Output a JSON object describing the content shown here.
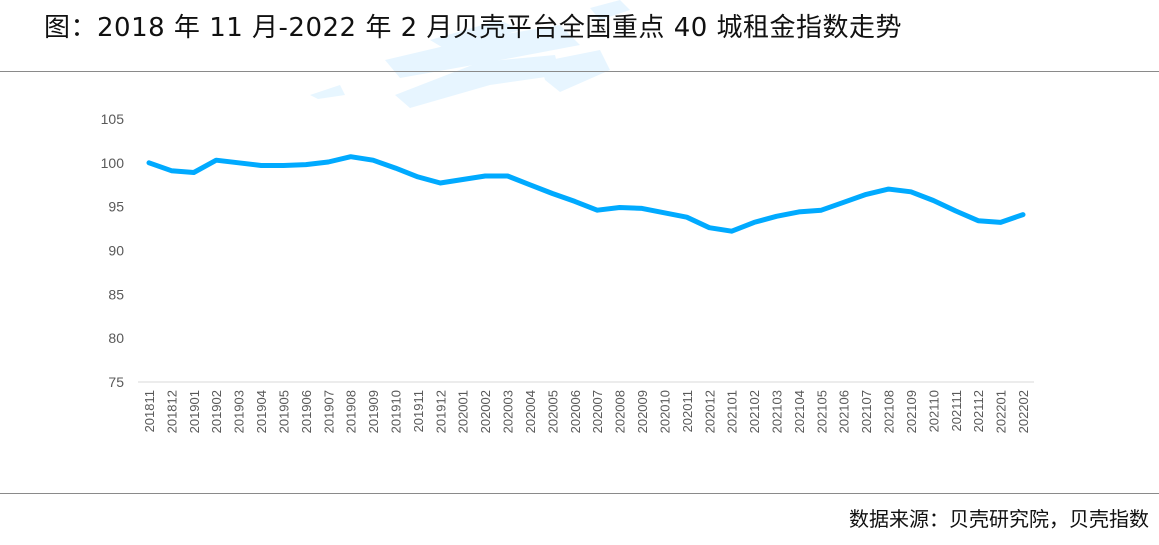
{
  "title": "图：2018 年 11 月-2022 年 2 月贝壳平台全国重点 40 城租金指数走势",
  "source": "数据来源：贝壳研究院，贝壳指数",
  "colors": {
    "line": "#00aaff",
    "axis_text": "#595959",
    "axis_line": "#d9d9d9",
    "rule": "#8a8a8a",
    "watermark": "#d6f0ff"
  },
  "chart_data": {
    "type": "line",
    "title": "2018 年 11 月-2022 年 2 月贝壳平台全国重点 40 城租金指数走势",
    "xlabel": "",
    "ylabel": "",
    "ylim": [
      75,
      105
    ],
    "yticks": [
      75,
      80,
      85,
      90,
      95,
      100,
      105
    ],
    "grid": false,
    "legend": "none",
    "categories": [
      "201811",
      "201812",
      "201901",
      "201902",
      "201903",
      "201904",
      "201905",
      "201906",
      "201907",
      "201908",
      "201909",
      "201910",
      "201911",
      "201912",
      "202001",
      "202002",
      "202003",
      "202004",
      "202005",
      "202006",
      "202007",
      "202008",
      "202009",
      "202010",
      "202011",
      "202012",
      "202101",
      "202102",
      "202103",
      "202104",
      "202105",
      "202106",
      "202107",
      "202108",
      "202109",
      "202110",
      "202111",
      "202112",
      "202201",
      "202202"
    ],
    "series": [
      {
        "name": "租金指数",
        "values": [
          100.0,
          99.1,
          98.9,
          100.3,
          100.0,
          99.7,
          99.7,
          99.8,
          100.1,
          100.7,
          100.3,
          99.4,
          98.4,
          97.7,
          98.1,
          98.5,
          98.5,
          97.5,
          96.5,
          95.6,
          94.6,
          94.9,
          94.8,
          94.3,
          93.8,
          92.6,
          92.2,
          93.2,
          93.9,
          94.4,
          94.6,
          95.5,
          96.4,
          97.0,
          96.7,
          95.7,
          94.5,
          93.4,
          93.2,
          94.1
        ]
      }
    ]
  }
}
